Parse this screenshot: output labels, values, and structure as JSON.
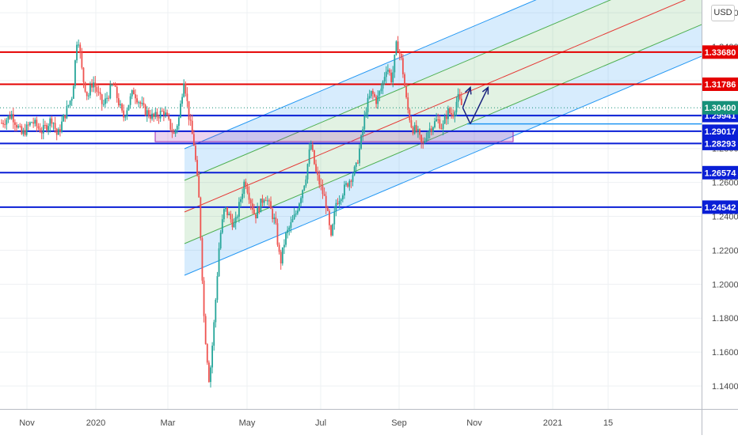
{
  "currency": "USD",
  "chart_data": {
    "type": "candlestick",
    "price_axis": {
      "ticks": [
        "1.36000",
        "1.34000",
        "1.32000",
        "1.30000",
        "1.28000",
        "1.26000",
        "1.24000",
        "1.22000",
        "1.20000",
        "1.18000",
        "1.16000",
        "1.14000"
      ],
      "range": [
        1.1265,
        1.3675
      ]
    },
    "time_axis": {
      "ticks": [
        "Nov",
        "2020",
        "Mar",
        "May",
        "Jul",
        "Sep",
        "Nov",
        "2021",
        "15"
      ]
    },
    "grid": true,
    "horizontal_levels": [
      {
        "price": 1.3368,
        "label": "1.33680",
        "color": "#e50000"
      },
      {
        "price": 1.31786,
        "label": "1.31786",
        "color": "#e50000"
      },
      {
        "price": 1.29941,
        "label": "1.29941",
        "color": "#0a1fd6"
      },
      {
        "price": 1.29017,
        "label": "1.29017",
        "color": "#0a1fd6"
      },
      {
        "price": 1.28293,
        "label": "1.28293",
        "color": "#0a1fd6"
      },
      {
        "price": 1.26574,
        "label": "1.26574",
        "color": "#0a1fd6"
      },
      {
        "price": 1.24542,
        "label": "1.24542",
        "color": "#0a1fd6"
      }
    ],
    "current_price": {
      "price": 1.304,
      "label": "1.30400",
      "color": "#16917a"
    },
    "projection_level": {
      "price": 1.2945,
      "color": "#2196f3"
    },
    "support_zone": {
      "top": 1.29,
      "bottom": 1.284,
      "color": "#9c27b0"
    },
    "channel_note": "Rising regression channel from Mar to Nov 2020 (blue outer bands, green inner bands, red median line)",
    "price_path": [
      {
        "t": 0,
        "p": 1.295
      },
      {
        "t": 2,
        "p": 1.3
      },
      {
        "t": 4,
        "p": 1.288
      },
      {
        "t": 6,
        "p": 1.296
      },
      {
        "t": 8,
        "p": 1.29
      },
      {
        "t": 10,
        "p": 1.298
      },
      {
        "t": 11,
        "p": 1.287
      },
      {
        "t": 12,
        "p": 1.296
      },
      {
        "t": 14,
        "p": 1.312
      },
      {
        "t": 15,
        "p": 1.349
      },
      {
        "t": 16,
        "p": 1.322
      },
      {
        "t": 17,
        "p": 1.31
      },
      {
        "t": 18,
        "p": 1.32
      },
      {
        "t": 20,
        "p": 1.305
      },
      {
        "t": 22,
        "p": 1.318
      },
      {
        "t": 24,
        "p": 1.298
      },
      {
        "t": 26,
        "p": 1.314
      },
      {
        "t": 28,
        "p": 1.303
      },
      {
        "t": 30,
        "p": 1.298
      },
      {
        "t": 32,
        "p": 1.302
      },
      {
        "t": 34,
        "p": 1.288
      },
      {
        "t": 35,
        "p": 1.298
      },
      {
        "t": 36,
        "p": 1.322
      },
      {
        "t": 37,
        "p": 1.298
      },
      {
        "t": 38,
        "p": 1.282
      },
      {
        "t": 39,
        "p": 1.248
      },
      {
        "t": 40,
        "p": 1.176
      },
      {
        "t": 41,
        "p": 1.142
      },
      {
        "t": 42,
        "p": 1.18
      },
      {
        "t": 43,
        "p": 1.226
      },
      {
        "t": 44,
        "p": 1.245
      },
      {
        "t": 46,
        "p": 1.234
      },
      {
        "t": 48,
        "p": 1.262
      },
      {
        "t": 50,
        "p": 1.24
      },
      {
        "t": 52,
        "p": 1.253
      },
      {
        "t": 54,
        "p": 1.236
      },
      {
        "t": 55,
        "p": 1.212
      },
      {
        "t": 56,
        "p": 1.228
      },
      {
        "t": 58,
        "p": 1.241
      },
      {
        "t": 60,
        "p": 1.263
      },
      {
        "t": 61,
        "p": 1.283
      },
      {
        "t": 62,
        "p": 1.266
      },
      {
        "t": 64,
        "p": 1.248
      },
      {
        "t": 65,
        "p": 1.226
      },
      {
        "t": 66,
        "p": 1.248
      },
      {
        "t": 68,
        "p": 1.258
      },
      {
        "t": 70,
        "p": 1.269
      },
      {
        "t": 71,
        "p": 1.286
      },
      {
        "t": 72,
        "p": 1.305
      },
      {
        "t": 73,
        "p": 1.313
      },
      {
        "t": 74,
        "p": 1.308
      },
      {
        "t": 75,
        "p": 1.316
      },
      {
        "t": 76,
        "p": 1.329
      },
      {
        "t": 77,
        "p": 1.32
      },
      {
        "t": 78,
        "p": 1.343
      },
      {
        "t": 79,
        "p": 1.33
      },
      {
        "t": 80,
        "p": 1.305
      },
      {
        "t": 81,
        "p": 1.292
      },
      {
        "t": 82,
        "p": 1.29
      },
      {
        "t": 83,
        "p": 1.281
      },
      {
        "t": 84,
        "p": 1.29
      },
      {
        "t": 86,
        "p": 1.297
      },
      {
        "t": 87,
        "p": 1.292
      },
      {
        "t": 88,
        "p": 1.302
      },
      {
        "t": 89,
        "p": 1.3
      },
      {
        "t": 90,
        "p": 1.31
      },
      {
        "t": 91,
        "p": 1.304
      }
    ],
    "forecast_path": [
      {
        "t": 91,
        "p": 1.304
      },
      {
        "t": 92.5,
        "p": 1.316
      },
      {
        "t": 92.5,
        "p": 1.316
      },
      {
        "t": 91,
        "p": 1.304
      },
      {
        "t": 92.5,
        "p": 1.2945
      },
      {
        "t": 96,
        "p": 1.316
      }
    ]
  }
}
